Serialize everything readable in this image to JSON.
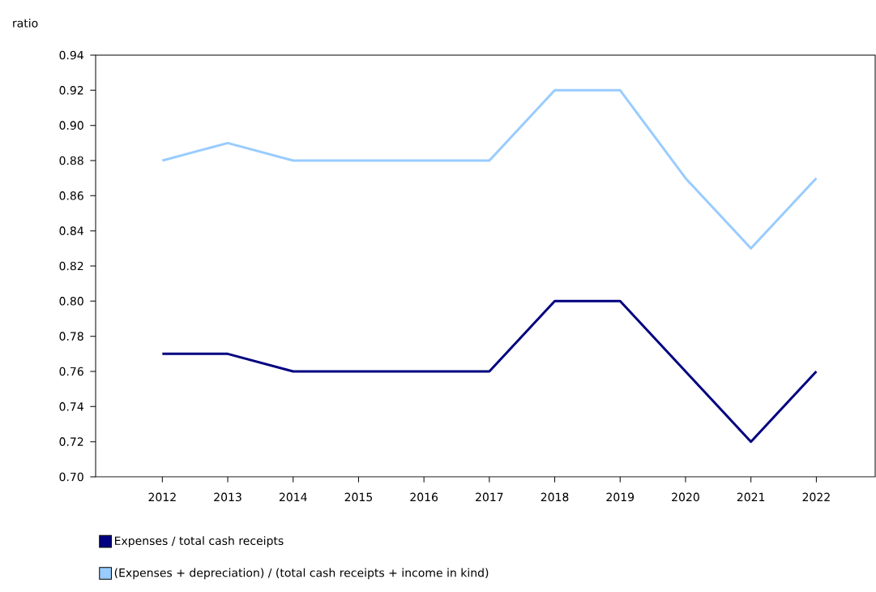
{
  "chart_data": {
    "type": "line",
    "ylabel": "ratio",
    "categories": [
      "2012",
      "2013",
      "2014",
      "2015",
      "2016",
      "2017",
      "2018",
      "2019",
      "2020",
      "2021",
      "2022"
    ],
    "series": [
      {
        "name": "Expenses / total cash receipts",
        "color": "#000080",
        "values": [
          0.77,
          0.77,
          0.76,
          0.76,
          0.76,
          0.76,
          0.8,
          0.8,
          0.76,
          0.72,
          0.76
        ]
      },
      {
        "name": "(Expenses + depreciation) / (total cash receipts + income in kind)",
        "color": "#99ccff",
        "values": [
          0.88,
          0.89,
          0.88,
          0.88,
          0.88,
          0.88,
          0.92,
          0.92,
          0.87,
          0.83,
          0.87
        ]
      }
    ],
    "ylim": [
      0.7,
      0.94
    ],
    "yticks": [
      {
        "value": 0.7,
        "label": "0.70"
      },
      {
        "value": 0.72,
        "label": "0.72"
      },
      {
        "value": 0.74,
        "label": "0.74"
      },
      {
        "value": 0.76,
        "label": "0.76"
      },
      {
        "value": 0.78,
        "label": "0.78"
      },
      {
        "value": 0.8,
        "label": "0.80"
      },
      {
        "value": 0.82,
        "label": "0.82"
      },
      {
        "value": 0.84,
        "label": "0.84"
      },
      {
        "value": 0.86,
        "label": "0.86"
      },
      {
        "value": 0.88,
        "label": "0.88"
      },
      {
        "value": 0.9,
        "label": "0.90"
      },
      {
        "value": 0.92,
        "label": "0.92"
      },
      {
        "value": 0.94,
        "label": "0.94"
      }
    ],
    "legend": "bottom",
    "grid": false,
    "marker": "none",
    "line_style": "solid"
  }
}
